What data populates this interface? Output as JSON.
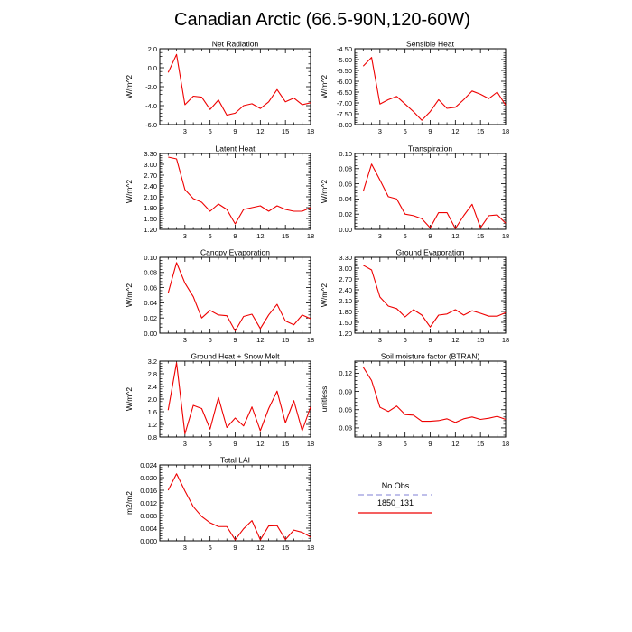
{
  "figure": {
    "title": "Canadian Arctic (66.5-90N,120-60W)"
  },
  "legend": {
    "entries": [
      {
        "label": "No Obs",
        "color": "#9999dd",
        "dash": true
      },
      {
        "label": "1850_131",
        "color": "#ee0000",
        "dash": false
      }
    ]
  },
  "chart_data": [
    {
      "type": "line",
      "title": "Net Radiation",
      "ylabel": "W/m^2",
      "xlim": [
        0,
        18
      ],
      "xticks": [
        3,
        6,
        9,
        12,
        15,
        18
      ],
      "ylim": [
        -6.0,
        2.0
      ],
      "yticks": [
        -6.0,
        -4.0,
        -2.0,
        0.0,
        2.0
      ],
      "ytick_labels": [
        "-6.0",
        "-4.0",
        "-2.0",
        "0.0",
        "2.0"
      ],
      "series": [
        {
          "color": "#ee0000",
          "x": [
            1,
            2,
            3,
            4,
            5,
            6,
            7,
            8,
            9,
            10,
            11,
            12,
            13,
            14,
            15,
            16,
            17,
            18
          ],
          "y": [
            -0.5,
            1.4,
            -3.9,
            -3.0,
            -3.1,
            -4.4,
            -3.4,
            -5.0,
            -4.8,
            -4.0,
            -3.8,
            -4.3,
            -3.6,
            -2.3,
            -3.6,
            -3.2,
            -3.9,
            -3.7
          ]
        }
      ]
    },
    {
      "type": "line",
      "title": "Sensible Heat",
      "ylabel": "W/m^2",
      "xlim": [
        0,
        18
      ],
      "xticks": [
        3,
        6,
        9,
        12,
        15,
        18
      ],
      "ylim": [
        -8.0,
        -4.5
      ],
      "yticks": [
        -8.0,
        -7.5,
        -7.0,
        -6.5,
        -6.0,
        -5.5,
        -5.0,
        -4.5
      ],
      "ytick_labels": [
        "-8.00",
        "-7.50",
        "-7.00",
        "-6.50",
        "-6.00",
        "-5.50",
        "-5.00",
        "-4.50"
      ],
      "series": [
        {
          "color": "#ee0000",
          "x": [
            1,
            2,
            3,
            4,
            5,
            6,
            7,
            8,
            9,
            10,
            11,
            12,
            13,
            14,
            15,
            16,
            17,
            18
          ],
          "y": [
            -5.3,
            -4.9,
            -7.05,
            -6.85,
            -6.7,
            -7.05,
            -7.4,
            -7.8,
            -7.4,
            -6.85,
            -7.25,
            -7.2,
            -6.85,
            -6.45,
            -6.6,
            -6.8,
            -6.5,
            -7.1
          ]
        }
      ]
    },
    {
      "type": "line",
      "title": "Latent Heat",
      "ylabel": "W/m^2",
      "xlim": [
        0,
        18
      ],
      "xticks": [
        3,
        6,
        9,
        12,
        15,
        18
      ],
      "ylim": [
        1.2,
        3.3
      ],
      "yticks": [
        1.2,
        1.5,
        1.8,
        2.1,
        2.4,
        2.7,
        3.0,
        3.3
      ],
      "ytick_labels": [
        "1.20",
        "1.50",
        "1.80",
        "2.10",
        "2.40",
        "2.70",
        "3.00",
        "3.30"
      ],
      "series": [
        {
          "color": "#ee0000",
          "x": [
            1,
            2,
            3,
            4,
            5,
            6,
            7,
            8,
            9,
            10,
            11,
            12,
            13,
            14,
            15,
            16,
            17,
            18
          ],
          "y": [
            3.2,
            3.15,
            2.3,
            2.05,
            1.95,
            1.7,
            1.9,
            1.75,
            1.35,
            1.75,
            1.8,
            1.85,
            1.7,
            1.85,
            1.75,
            1.7,
            1.7,
            1.8
          ]
        }
      ]
    },
    {
      "type": "line",
      "title": "Transpiration",
      "ylabel": "W/m^2",
      "xlim": [
        0,
        18
      ],
      "xticks": [
        3,
        6,
        9,
        12,
        15,
        18
      ],
      "ylim": [
        0.0,
        0.1
      ],
      "yticks": [
        0.0,
        0.02,
        0.04,
        0.06,
        0.08,
        0.1
      ],
      "ytick_labels": [
        "0.00",
        "0.02",
        "0.04",
        "0.06",
        "0.08",
        "0.10"
      ],
      "series": [
        {
          "color": "#ee0000",
          "x": [
            1,
            2,
            3,
            4,
            5,
            6,
            7,
            8,
            9,
            10,
            11,
            12,
            13,
            14,
            15,
            16,
            17,
            18
          ],
          "y": [
            0.05,
            0.086,
            0.065,
            0.043,
            0.04,
            0.02,
            0.018,
            0.014,
            0.002,
            0.022,
            0.022,
            0.001,
            0.018,
            0.033,
            0.002,
            0.018,
            0.019,
            0.008
          ]
        }
      ]
    },
    {
      "type": "line",
      "title": "Canopy Evaporation",
      "ylabel": "W/m^2",
      "xlim": [
        0,
        18
      ],
      "xticks": [
        3,
        6,
        9,
        12,
        15,
        18
      ],
      "ylim": [
        0.0,
        0.1
      ],
      "yticks": [
        0.0,
        0.02,
        0.04,
        0.06,
        0.08,
        0.1
      ],
      "ytick_labels": [
        "0.00",
        "0.02",
        "0.04",
        "0.06",
        "0.08",
        "0.10"
      ],
      "series": [
        {
          "color": "#ee0000",
          "x": [
            1,
            2,
            3,
            4,
            5,
            6,
            7,
            8,
            9,
            10,
            11,
            12,
            13,
            14,
            15,
            16,
            17,
            18
          ],
          "y": [
            0.053,
            0.093,
            0.066,
            0.048,
            0.02,
            0.03,
            0.024,
            0.023,
            0.003,
            0.022,
            0.025,
            0.006,
            0.024,
            0.038,
            0.016,
            0.011,
            0.024,
            0.019
          ]
        }
      ]
    },
    {
      "type": "line",
      "title": "Ground Evaporation",
      "ylabel": "W/m^2",
      "xlim": [
        0,
        18
      ],
      "xticks": [
        3,
        6,
        9,
        12,
        15,
        18
      ],
      "ylim": [
        1.2,
        3.3
      ],
      "yticks": [
        1.2,
        1.5,
        1.8,
        2.1,
        2.4,
        2.7,
        3.0,
        3.3
      ],
      "ytick_labels": [
        "1.20",
        "1.50",
        "1.80",
        "2.10",
        "2.40",
        "2.70",
        "3.00",
        "3.30"
      ],
      "series": [
        {
          "color": "#ee0000",
          "x": [
            1,
            2,
            3,
            4,
            5,
            6,
            7,
            8,
            9,
            10,
            11,
            12,
            13,
            14,
            15,
            16,
            17,
            18
          ],
          "y": [
            3.08,
            2.95,
            2.2,
            1.95,
            1.88,
            1.65,
            1.85,
            1.7,
            1.37,
            1.7,
            1.73,
            1.85,
            1.7,
            1.82,
            1.75,
            1.67,
            1.67,
            1.77
          ]
        }
      ]
    },
    {
      "type": "line",
      "title": "Ground Heat + Snow Melt",
      "ylabel": "W/m^2",
      "xlim": [
        0,
        18
      ],
      "xticks": [
        3,
        6,
        9,
        12,
        15,
        18
      ],
      "ylim": [
        0.8,
        3.2
      ],
      "yticks": [
        0.8,
        1.2,
        1.6,
        2.0,
        2.4,
        2.8,
        3.2
      ],
      "ytick_labels": [
        "0.8",
        "1.2",
        "1.6",
        "2.0",
        "2.4",
        "2.8",
        "3.2"
      ],
      "series": [
        {
          "color": "#ee0000",
          "x": [
            1,
            2,
            3,
            4,
            5,
            6,
            7,
            8,
            9,
            10,
            11,
            12,
            13,
            14,
            15,
            16,
            17,
            18
          ],
          "y": [
            1.65,
            3.15,
            0.9,
            1.8,
            1.7,
            1.05,
            2.05,
            1.1,
            1.4,
            1.15,
            1.75,
            1.0,
            1.7,
            2.25,
            1.25,
            1.95,
            1.0,
            1.75
          ]
        }
      ]
    },
    {
      "type": "line",
      "title": "Soil moisture factor (BTRAN)",
      "ylabel": "unitless",
      "xlim": [
        0,
        18
      ],
      "xticks": [
        3,
        6,
        9,
        12,
        15,
        18
      ],
      "ylim": [
        0.015,
        0.14
      ],
      "yticks": [
        0.03,
        0.06,
        0.09,
        0.12
      ],
      "ytick_labels": [
        "0.03",
        "0.06",
        "0.09",
        "0.12"
      ],
      "series": [
        {
          "color": "#ee0000",
          "x": [
            1,
            2,
            3,
            4,
            5,
            6,
            7,
            8,
            9,
            10,
            11,
            12,
            13,
            14,
            15,
            16,
            17,
            18
          ],
          "y": [
            0.13,
            0.108,
            0.064,
            0.057,
            0.066,
            0.052,
            0.051,
            0.041,
            0.041,
            0.042,
            0.045,
            0.039,
            0.045,
            0.048,
            0.044,
            0.046,
            0.049,
            0.044
          ]
        }
      ]
    },
    {
      "type": "line",
      "title": "Total LAI",
      "ylabel": "m2/m2",
      "xlim": [
        0,
        18
      ],
      "xticks": [
        3,
        6,
        9,
        12,
        15,
        18
      ],
      "ylim": [
        0.0,
        0.024
      ],
      "yticks": [
        0.0,
        0.004,
        0.008,
        0.012,
        0.016,
        0.02,
        0.024
      ],
      "ytick_labels": [
        "0.000",
        "0.004",
        "0.008",
        "0.012",
        "0.016",
        "0.020",
        "0.024"
      ],
      "series": [
        {
          "color": "#ee0000",
          "x": [
            1,
            2,
            3,
            4,
            5,
            6,
            7,
            8,
            9,
            10,
            11,
            12,
            13,
            14,
            15,
            16,
            17,
            18
          ],
          "y": [
            0.016,
            0.0212,
            0.0158,
            0.0108,
            0.0077,
            0.0057,
            0.0045,
            0.0045,
            0.0003,
            0.0038,
            0.0064,
            0.0003,
            0.0047,
            0.0048,
            0.0004,
            0.0034,
            0.0027,
            0.0012
          ]
        }
      ]
    }
  ]
}
